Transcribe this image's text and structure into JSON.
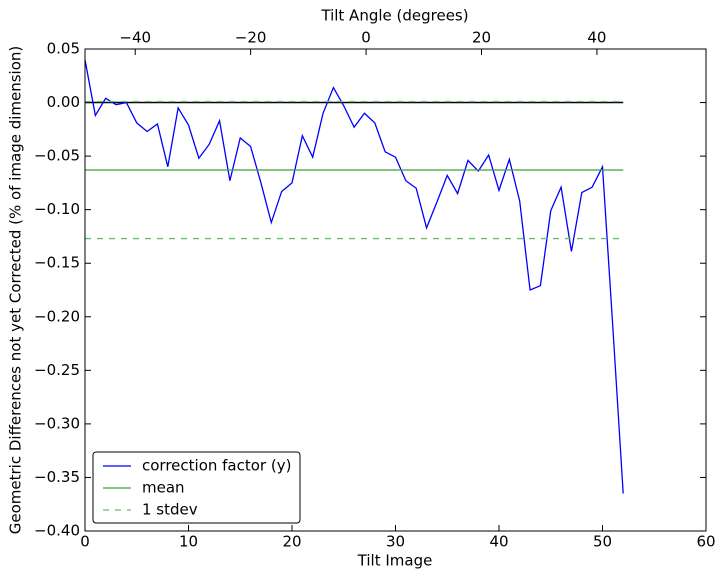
{
  "chart_data": {
    "type": "line",
    "xlabel": "Tilt Image",
    "ylabel": "Geometric Differences not yet Corrected (% of image dimension)",
    "x2label": "Tilt Angle (degrees)",
    "x": [
      0,
      1,
      2,
      3,
      4,
      5,
      6,
      7,
      8,
      9,
      10,
      11,
      12,
      13,
      14,
      15,
      16,
      17,
      18,
      19,
      20,
      21,
      22,
      23,
      24,
      25,
      26,
      27,
      28,
      29,
      30,
      31,
      32,
      33,
      34,
      35,
      36,
      37,
      38,
      39,
      40,
      41,
      42,
      43,
      44,
      45,
      46,
      47,
      48,
      49,
      50,
      51,
      52
    ],
    "series": [
      {
        "name": "correction factor (y)",
        "color": "#0000ff",
        "style": "solid",
        "values": [
          0.04,
          -0.012,
          0.004,
          -0.002,
          0.0,
          -0.019,
          -0.027,
          -0.02,
          -0.06,
          -0.005,
          -0.021,
          -0.052,
          -0.039,
          -0.017,
          -0.073,
          -0.033,
          -0.041,
          -0.075,
          -0.112,
          -0.083,
          -0.075,
          -0.031,
          -0.051,
          -0.01,
          0.014,
          -0.003,
          -0.023,
          -0.01,
          -0.019,
          -0.046,
          -0.051,
          -0.073,
          -0.08,
          -0.117,
          -0.093,
          -0.068,
          -0.085,
          -0.054,
          -0.064,
          -0.049,
          -0.082,
          -0.053,
          -0.092,
          -0.175,
          -0.171,
          -0.101,
          -0.079,
          -0.139,
          -0.084,
          -0.079,
          -0.06,
          -0.21,
          -0.365
        ]
      },
      {
        "name": "mean",
        "color": "#3ca03c",
        "style": "solid",
        "hlines": [
          -0.063
        ],
        "xspan": [
          0,
          52
        ]
      },
      {
        "name": "1 stdev",
        "color": "#6abf6a",
        "style": "dashed",
        "hlines": [
          0.001,
          -0.127
        ],
        "xspan": [
          0,
          52
        ]
      }
    ],
    "baseline": {
      "value": 0,
      "color": "#000000",
      "xspan": [
        0,
        52
      ]
    },
    "xlim": [
      0,
      60
    ],
    "xticks": [
      0,
      10,
      20,
      30,
      40,
      50,
      60
    ],
    "ylim": [
      -0.4,
      0.05
    ],
    "yticks": [
      {
        "value": 0.05,
        "label": "0.05"
      },
      {
        "value": 0,
        "label": "0.00"
      },
      {
        "value": -0.05,
        "label": "−0.05"
      },
      {
        "value": -0.1,
        "label": "−0.10"
      },
      {
        "value": -0.15,
        "label": "−0.15"
      },
      {
        "value": -0.2,
        "label": "−0.20"
      },
      {
        "value": -0.25,
        "label": "−0.25"
      },
      {
        "value": -0.3,
        "label": "−0.30"
      },
      {
        "value": -0.35,
        "label": "−0.35"
      },
      {
        "value": -0.4,
        "label": "−0.40"
      }
    ],
    "x2lim": [
      -48.7,
      58.9
    ],
    "x2ticks": [
      {
        "value": -40,
        "label": "−40"
      },
      {
        "value": -20,
        "label": "−20"
      },
      0,
      20,
      40
    ],
    "legend": "lower left"
  }
}
